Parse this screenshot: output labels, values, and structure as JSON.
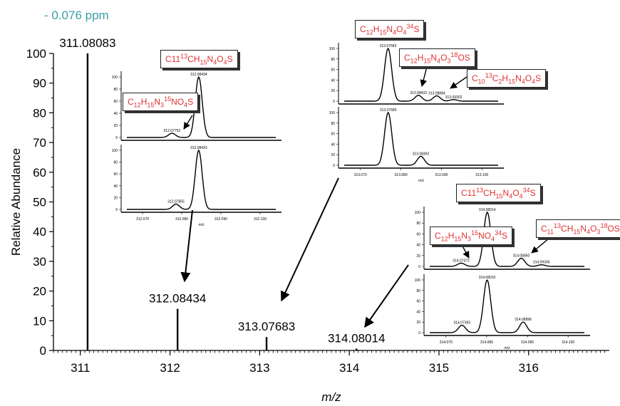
{
  "header": {
    "ppm_label": "- 0.076 ppm"
  },
  "chart_data": {
    "type": "line",
    "xlabel": "m/z",
    "ylabel": "Relative Abundance",
    "xlim": [
      310.7,
      316.9
    ],
    "ylim": [
      0,
      100
    ],
    "x_ticks": [
      "311",
      "312",
      "313",
      "314",
      "315",
      "316"
    ],
    "y_ticks": [
      "0",
      "10",
      "20",
      "30",
      "40",
      "50",
      "60",
      "70",
      "80",
      "90",
      "100"
    ],
    "peaks": [
      {
        "mz": 311.08083,
        "abundance": 100,
        "label": "311.08083"
      },
      {
        "mz": 312.08434,
        "abundance": 14,
        "label": "312.08434"
      },
      {
        "mz": 313.07683,
        "abundance": 4.5,
        "label": "313.07683"
      },
      {
        "mz": 314.08014,
        "abundance": 0.6,
        "label": "314.08014"
      }
    ],
    "insets": [
      {
        "group": "312",
        "formulas": [
          {
            "parts": [
              [
                "C",
                ""
              ],
              [
                "11",
                ""
              ],
              [
                "13",
                "sup"
              ],
              [
                "CH",
                ""
              ],
              [
                "15",
                "sub"
              ],
              [
                "N",
                ""
              ],
              [
                "4",
                "sub"
              ],
              [
                "O",
                ""
              ],
              [
                "4",
                "sub"
              ],
              [
                "S",
                ""
              ]
            ]
          },
          {
            "parts": [
              [
                "C",
                ""
              ],
              [
                "12",
                "sub"
              ],
              [
                "H",
                ""
              ],
              [
                "15",
                "sub"
              ],
              [
                "N",
                ""
              ],
              [
                "3",
                "sub"
              ],
              [
                "15",
                "sup"
              ],
              [
                "NO",
                ""
              ],
              [
                "4",
                "sub"
              ],
              [
                "S",
                ""
              ]
            ]
          }
        ],
        "top_peaks": [
          {
            "mz": 312.07752,
            "abundance": 7,
            "label": "312.07752"
          },
          {
            "mz": 312.08434,
            "abundance": 100,
            "label": "312.08434"
          }
        ],
        "bottom_peaks": [
          {
            "mz": 312.07855,
            "abundance": 9,
            "label": "312.07855"
          },
          {
            "mz": 312.08433,
            "abundance": 100,
            "label": "312.08433"
          }
        ],
        "bottom_ticks": [
          "312.070",
          "312.080",
          "312.090",
          "312.100"
        ]
      },
      {
        "group": "313",
        "formulas": [
          {
            "parts": [
              [
                "C",
                ""
              ],
              [
                "12",
                "sub"
              ],
              [
                "H",
                ""
              ],
              [
                "15",
                "sub"
              ],
              [
                "N",
                ""
              ],
              [
                "4",
                "sub"
              ],
              [
                "O",
                ""
              ],
              [
                "4",
                "sub"
              ],
              [
                "34",
                "sup"
              ],
              [
                "S",
                ""
              ]
            ]
          },
          {
            "parts": [
              [
                "C",
                ""
              ],
              [
                "12",
                "sub"
              ],
              [
                "H",
                ""
              ],
              [
                "15",
                "sub"
              ],
              [
                "N",
                ""
              ],
              [
                "4",
                "sub"
              ],
              [
                "O",
                ""
              ],
              [
                "3",
                "sub"
              ],
              [
                "18",
                "sup"
              ],
              [
                "OS",
                ""
              ]
            ]
          },
          {
            "parts": [
              [
                "C",
                ""
              ],
              [
                "10",
                "sub"
              ],
              [
                "13",
                "sup"
              ],
              [
                "C",
                ""
              ],
              [
                "2",
                "sub"
              ],
              [
                "H",
                ""
              ],
              [
                "15",
                "sub"
              ],
              [
                "N",
                ""
              ],
              [
                "4",
                "sub"
              ],
              [
                "O",
                ""
              ],
              [
                "4",
                "sub"
              ],
              [
                "S",
                ""
              ]
            ]
          }
        ],
        "top_peaks": [
          {
            "mz": 313.07683,
            "abundance": 100,
            "label": "313.07683"
          },
          {
            "mz": 313.08433,
            "abundance": 11,
            "label": "313.08433"
          },
          {
            "mz": 313.08884,
            "abundance": 10,
            "label": "313.08884"
          },
          {
            "mz": 313.09302,
            "abundance": 3,
            "label": "313.09302"
          }
        ],
        "bottom_peaks": [
          {
            "mz": 313.07685,
            "abundance": 100,
            "label": "313.07685"
          },
          {
            "mz": 313.08492,
            "abundance": 17,
            "label": "313.08492"
          }
        ],
        "bottom_ticks": [
          "313.070",
          "313.080",
          "313.090",
          "313.100"
        ]
      },
      {
        "group": "314",
        "formulas": [
          {
            "parts": [
              [
                "C",
                ""
              ],
              [
                "11",
                ""
              ],
              [
                "13",
                "sup"
              ],
              [
                "CH",
                ""
              ],
              [
                "15",
                "sub"
              ],
              [
                "N",
                ""
              ],
              [
                "4",
                "sub"
              ],
              [
                "O",
                ""
              ],
              [
                "4",
                "sub"
              ],
              [
                "34",
                "sup"
              ],
              [
                "S",
                ""
              ]
            ]
          },
          {
            "parts": [
              [
                "C",
                ""
              ],
              [
                "12",
                "sub"
              ],
              [
                "H",
                ""
              ],
              [
                "15",
                "sub"
              ],
              [
                "N",
                ""
              ],
              [
                "3",
                "sub"
              ],
              [
                "15",
                "sup"
              ],
              [
                "NO",
                ""
              ],
              [
                "4",
                "sub"
              ],
              [
                "34",
                "sup"
              ],
              [
                "S",
                ""
              ]
            ]
          },
          {
            "parts": [
              [
                "C",
                ""
              ],
              [
                "11",
                "sub"
              ],
              [
                "13",
                "sup"
              ],
              [
                "CH",
                ""
              ],
              [
                "15",
                "sub"
              ],
              [
                "N",
                ""
              ],
              [
                "4",
                "sub"
              ],
              [
                "O",
                ""
              ],
              [
                "3",
                "sub"
              ],
              [
                "18",
                "sup"
              ],
              [
                "OS",
                ""
              ]
            ]
          }
        ],
        "top_peaks": [
          {
            "mz": 314.07372,
            "abundance": 6,
            "label": "314.07372"
          },
          {
            "mz": 314.08014,
            "abundance": 100,
            "label": "314.08014"
          },
          {
            "mz": 314.0885,
            "abundance": 15,
            "label": "314.08850"
          },
          {
            "mz": 314.09345,
            "abundance": 3,
            "label": "314.09345"
          }
        ],
        "bottom_peaks": [
          {
            "mz": 314.07393,
            "abundance": 14,
            "label": "314.07393"
          },
          {
            "mz": 314.0801,
            "abundance": 100,
            "label": "314.08010"
          },
          {
            "mz": 314.08896,
            "abundance": 20,
            "label": "314.08896"
          }
        ],
        "bottom_ticks": [
          "314.070",
          "314.080",
          "314.090",
          "314.100"
        ]
      }
    ]
  }
}
